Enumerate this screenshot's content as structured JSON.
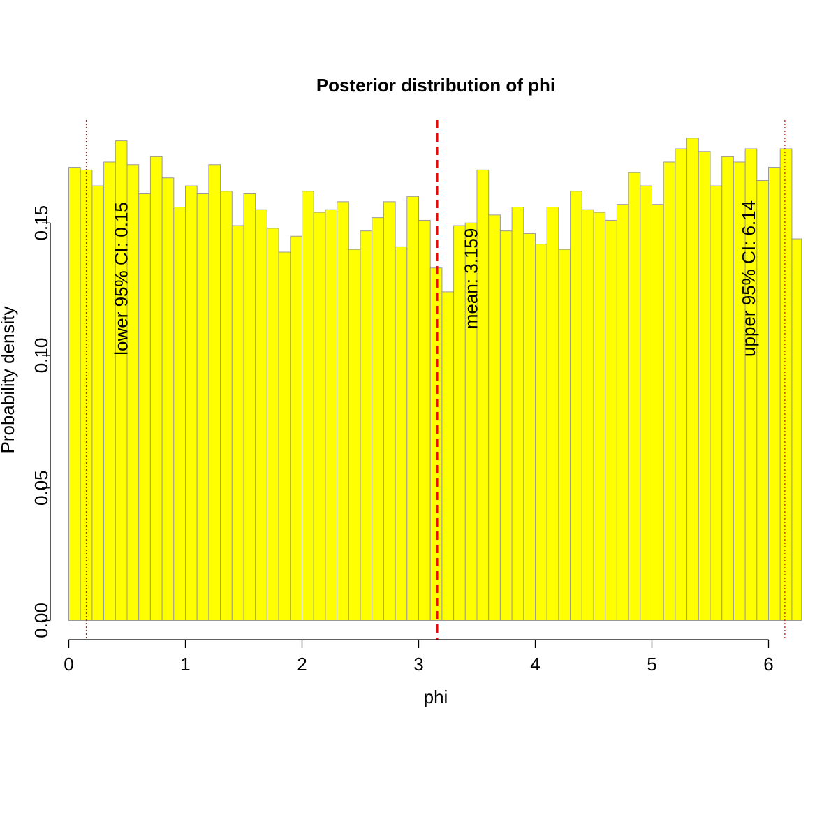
{
  "chart_data": {
    "type": "bar",
    "title": "Posterior distribution of phi",
    "xlabel": "phi",
    "ylabel": "Probability density",
    "xlim": [
      0,
      6.283
    ],
    "ylim": [
      0,
      0.19
    ],
    "x_ticks": [
      "0",
      "1",
      "2",
      "3",
      "4",
      "5",
      "6"
    ],
    "y_ticks": [
      "0.00",
      "0.05",
      "0.10",
      "0.15"
    ],
    "bin_width": 0.1,
    "bin_starts": [
      0.0,
      0.1,
      0.2,
      0.3,
      0.4,
      0.5,
      0.6,
      0.7,
      0.8,
      0.9,
      1.0,
      1.1,
      1.2,
      1.3,
      1.4,
      1.5,
      1.6,
      1.7,
      1.8,
      1.9,
      2.0,
      2.1,
      2.2,
      2.3,
      2.4,
      2.5,
      2.6,
      2.7,
      2.8,
      2.9,
      3.0,
      3.1,
      3.2,
      3.3,
      3.4,
      3.5,
      3.6,
      3.7,
      3.8,
      3.9,
      4.0,
      4.1,
      4.2,
      4.3,
      4.4,
      4.5,
      4.6,
      4.7,
      4.8,
      4.9,
      5.0,
      5.1,
      5.2,
      5.3,
      5.4,
      5.5,
      5.6,
      5.7,
      5.8,
      5.9,
      6.0,
      6.1,
      6.2
    ],
    "values": [
      0.171,
      0.17,
      0.164,
      0.173,
      0.181,
      0.172,
      0.161,
      0.175,
      0.167,
      0.156,
      0.164,
      0.161,
      0.172,
      0.162,
      0.149,
      0.161,
      0.155,
      0.148,
      0.139,
      0.145,
      0.162,
      0.154,
      0.155,
      0.158,
      0.14,
      0.147,
      0.152,
      0.158,
      0.141,
      0.16,
      0.151,
      0.133,
      0.124,
      0.149,
      0.15,
      0.17,
      0.153,
      0.147,
      0.156,
      0.146,
      0.142,
      0.156,
      0.14,
      0.162,
      0.155,
      0.154,
      0.151,
      0.157,
      0.169,
      0.164,
      0.157,
      0.173,
      0.178,
      0.182,
      0.177,
      0.164,
      0.175,
      0.173,
      0.178,
      0.166,
      0.171,
      0.178,
      0.144
    ],
    "bar_fill": "#ffff00",
    "bar_border": "#999999",
    "vlines": [
      {
        "x": 0.15,
        "style": "dotted",
        "color": "#ff0000"
      },
      {
        "x": 3.159,
        "style": "dashed",
        "color": "#ff0000"
      },
      {
        "x": 6.14,
        "style": "dotted",
        "color": "#ff0000"
      }
    ],
    "annotations": [
      {
        "text": "lower 95% CI:  0.15",
        "x": 0.45,
        "y": 0.129
      },
      {
        "text": "mean:  3.159",
        "x": 3.45,
        "y": 0.129
      },
      {
        "text": "upper 95% CI:  6.14",
        "x": 5.83,
        "y": 0.129
      }
    ],
    "grid": false,
    "legend": "none"
  }
}
